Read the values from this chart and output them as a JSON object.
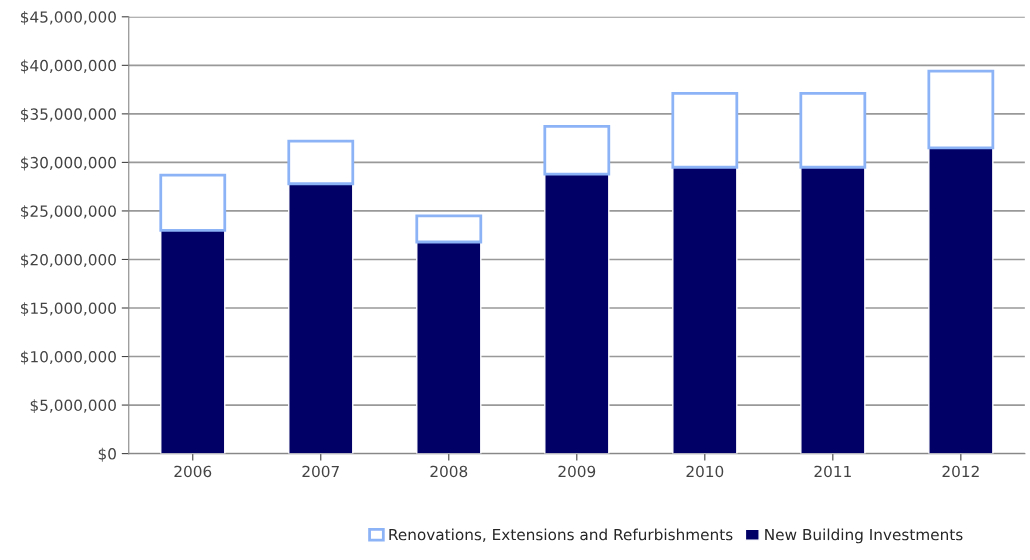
{
  "chart_data": {
    "type": "bar",
    "stacked": true,
    "categories": [
      "2006",
      "2007",
      "2008",
      "2009",
      "2010",
      "2011",
      "2012"
    ],
    "series": [
      {
        "name": "New Building Investments",
        "color": "#000066",
        "values": [
          23000000,
          27800000,
          21800000,
          28800000,
          29500000,
          29500000,
          31500000
        ]
      },
      {
        "name": "Renovations, Extensions and Refurbishments",
        "color": "#8db3f7",
        "values": [
          5700000,
          4400000,
          2700000,
          4900000,
          7600000,
          7600000,
          7900000
        ]
      }
    ],
    "ylim": [
      0,
      45000000
    ],
    "yticks": [
      {
        "value": 0,
        "label": "$0"
      },
      {
        "value": 5000000,
        "label": "$5,000,000"
      },
      {
        "value": 10000000,
        "label": "$10,000,000"
      },
      {
        "value": 15000000,
        "label": "$15,000,000"
      },
      {
        "value": 20000000,
        "label": "$20,000,000"
      },
      {
        "value": 25000000,
        "label": "$25,000,000"
      },
      {
        "value": 30000000,
        "label": "$30,000,000"
      },
      {
        "value": 35000000,
        "label": "$35,000,000"
      },
      {
        "value": 40000000,
        "label": "$40,000,000"
      },
      {
        "value": 45000000,
        "label": "$45,000,000"
      }
    ],
    "grid": "y",
    "legend": "bottom"
  }
}
